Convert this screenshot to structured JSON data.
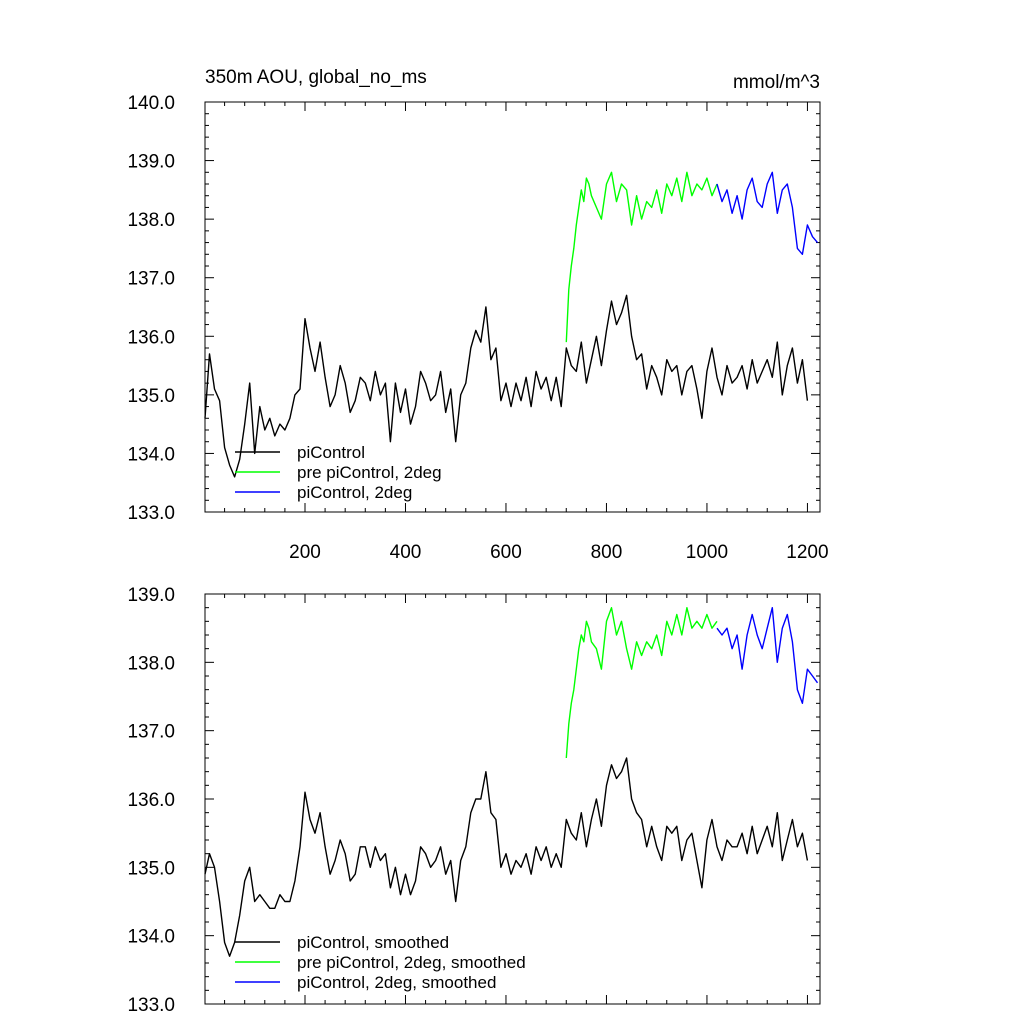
{
  "chart_data": [
    {
      "type": "line",
      "title": "350m AOU, global_no_ms",
      "units": "mmol/m^3",
      "xlim": [
        1,
        1225
      ],
      "ylim": [
        133.0,
        140.0
      ],
      "x_ticks": [
        200,
        400,
        600,
        800,
        1000,
        1200
      ],
      "x_tick_labels": [
        "200",
        "400",
        "600",
        "800",
        "1000",
        "1200"
      ],
      "y_ticks": [
        133.0,
        134.0,
        135.0,
        136.0,
        137.0,
        138.0,
        139.0,
        140.0
      ],
      "y_tick_labels": [
        "133.0",
        "134.0",
        "135.0",
        "136.0",
        "137.0",
        "138.0",
        "139.0",
        "140.0"
      ],
      "legend_position": "bottom-left",
      "series": [
        {
          "name": "piControl",
          "color": "#000000",
          "x": [
            1,
            10,
            20,
            30,
            40,
            50,
            60,
            70,
            80,
            90,
            100,
            110,
            120,
            130,
            140,
            150,
            160,
            170,
            180,
            190,
            200,
            210,
            220,
            230,
            240,
            250,
            260,
            270,
            280,
            290,
            300,
            310,
            320,
            330,
            340,
            350,
            360,
            370,
            380,
            390,
            400,
            410,
            420,
            430,
            440,
            450,
            460,
            470,
            480,
            490,
            500,
            510,
            520,
            530,
            540,
            550,
            560,
            570,
            580,
            590,
            600,
            610,
            620,
            630,
            640,
            650,
            660,
            670,
            680,
            690,
            700,
            710,
            720,
            730,
            740,
            750,
            760,
            770,
            780,
            790,
            800,
            810,
            820,
            830,
            840,
            850,
            860,
            870,
            880,
            890,
            900,
            910,
            920,
            930,
            940,
            950,
            960,
            970,
            980,
            990,
            1000,
            1010,
            1020,
            1030,
            1040,
            1050,
            1060,
            1070,
            1080,
            1090,
            1100,
            1110,
            1120,
            1130,
            1140,
            1150,
            1160,
            1170,
            1180,
            1190,
            1200
          ],
          "values": [
            134.6,
            135.7,
            135.1,
            134.9,
            134.1,
            133.8,
            133.6,
            133.9,
            134.5,
            135.2,
            134.0,
            134.8,
            134.4,
            134.6,
            134.3,
            134.5,
            134.4,
            134.6,
            135.0,
            135.1,
            136.3,
            135.8,
            135.4,
            135.9,
            135.3,
            134.8,
            135.0,
            135.5,
            135.2,
            134.7,
            134.9,
            135.3,
            135.2,
            134.9,
            135.4,
            135.0,
            135.2,
            134.2,
            135.2,
            134.7,
            135.1,
            134.5,
            134.8,
            135.4,
            135.2,
            134.9,
            135.0,
            135.4,
            134.7,
            135.1,
            134.2,
            135.0,
            135.2,
            135.8,
            136.1,
            135.9,
            136.5,
            135.6,
            135.8,
            134.9,
            135.2,
            134.8,
            135.2,
            134.9,
            135.3,
            134.8,
            135.4,
            135.1,
            135.3,
            134.9,
            135.3,
            134.8,
            135.8,
            135.5,
            135.4,
            135.9,
            135.2,
            135.6,
            136.0,
            135.5,
            136.1,
            136.6,
            136.2,
            136.4,
            136.7,
            136.0,
            135.6,
            135.7,
            135.1,
            135.5,
            135.3,
            135.0,
            135.6,
            135.4,
            135.5,
            135.0,
            135.4,
            135.5,
            135.1,
            134.6,
            135.4,
            135.8,
            135.3,
            135.0,
            135.5,
            135.2,
            135.3,
            135.5,
            135.1,
            135.6,
            135.2,
            135.4,
            135.6,
            135.3,
            135.9,
            135.0,
            135.5,
            135.8,
            135.2,
            135.6,
            134.9
          ]
        },
        {
          "name": "pre piControl, 2deg",
          "color": "#00ff00",
          "x": [
            720,
            725,
            730,
            735,
            740,
            745,
            750,
            755,
            760,
            765,
            770,
            780,
            790,
            800,
            810,
            820,
            830,
            840,
            850,
            860,
            870,
            880,
            890,
            900,
            910,
            920,
            930,
            940,
            950,
            960,
            970,
            980,
            990,
            1000,
            1010,
            1020
          ],
          "values": [
            135.9,
            136.8,
            137.2,
            137.5,
            137.9,
            138.2,
            138.5,
            138.3,
            138.7,
            138.6,
            138.4,
            138.2,
            138.0,
            138.6,
            138.8,
            138.3,
            138.6,
            138.5,
            137.9,
            138.4,
            138.0,
            138.3,
            138.2,
            138.5,
            138.1,
            138.6,
            138.4,
            138.7,
            138.3,
            138.8,
            138.4,
            138.6,
            138.5,
            138.7,
            138.4,
            138.6
          ]
        },
        {
          "name": "piControl, 2deg",
          "color": "#0000ff",
          "x": [
            1020,
            1030,
            1040,
            1050,
            1060,
            1070,
            1080,
            1090,
            1100,
            1110,
            1120,
            1130,
            1140,
            1150,
            1160,
            1170,
            1180,
            1190,
            1200,
            1210,
            1220
          ],
          "values": [
            138.6,
            138.3,
            138.5,
            138.1,
            138.4,
            138.0,
            138.5,
            138.7,
            138.3,
            138.2,
            138.6,
            138.8,
            138.1,
            138.5,
            138.6,
            138.2,
            137.5,
            137.4,
            137.9,
            137.7,
            137.6
          ]
        }
      ]
    },
    {
      "type": "line",
      "xlim": [
        1,
        1225
      ],
      "ylim": [
        133.0,
        139.0
      ],
      "y_ticks": [
        133.0,
        134.0,
        135.0,
        136.0,
        137.0,
        138.0,
        139.0
      ],
      "y_tick_labels": [
        "133.0",
        "134.0",
        "135.0",
        "136.0",
        "137.0",
        "138.0",
        "139.0"
      ],
      "legend_position": "bottom-left",
      "series": [
        {
          "name": "piControl, smoothed",
          "color": "#000000",
          "x": [
            1,
            10,
            20,
            30,
            40,
            50,
            60,
            70,
            80,
            90,
            100,
            110,
            120,
            130,
            140,
            150,
            160,
            170,
            180,
            190,
            200,
            210,
            220,
            230,
            240,
            250,
            260,
            270,
            280,
            290,
            300,
            310,
            320,
            330,
            340,
            350,
            360,
            370,
            380,
            390,
            400,
            410,
            420,
            430,
            440,
            450,
            460,
            470,
            480,
            490,
            500,
            510,
            520,
            530,
            540,
            550,
            560,
            570,
            580,
            590,
            600,
            610,
            620,
            630,
            640,
            650,
            660,
            670,
            680,
            690,
            700,
            710,
            720,
            730,
            740,
            750,
            760,
            770,
            780,
            790,
            800,
            810,
            820,
            830,
            840,
            850,
            860,
            870,
            880,
            890,
            900,
            910,
            920,
            930,
            940,
            950,
            960,
            970,
            980,
            990,
            1000,
            1010,
            1020,
            1030,
            1040,
            1050,
            1060,
            1070,
            1080,
            1090,
            1100,
            1110,
            1120,
            1130,
            1140,
            1150,
            1160,
            1170,
            1180,
            1190,
            1200
          ],
          "values": [
            134.9,
            135.2,
            135.0,
            134.5,
            133.9,
            133.7,
            133.9,
            134.3,
            134.8,
            135.0,
            134.5,
            134.6,
            134.5,
            134.4,
            134.4,
            134.6,
            134.5,
            134.5,
            134.8,
            135.3,
            136.1,
            135.7,
            135.5,
            135.8,
            135.3,
            134.9,
            135.1,
            135.4,
            135.2,
            134.8,
            134.9,
            135.3,
            135.3,
            135.0,
            135.3,
            135.1,
            135.2,
            134.7,
            135.0,
            134.6,
            134.9,
            134.6,
            134.8,
            135.3,
            135.2,
            135.0,
            135.1,
            135.3,
            134.9,
            135.1,
            134.5,
            135.1,
            135.3,
            135.8,
            136.0,
            136.0,
            136.4,
            135.8,
            135.7,
            135.0,
            135.2,
            134.9,
            135.1,
            135.0,
            135.2,
            134.9,
            135.3,
            135.1,
            135.3,
            135.0,
            135.2,
            135.0,
            135.7,
            135.5,
            135.4,
            135.8,
            135.3,
            135.7,
            136.0,
            135.6,
            136.2,
            136.5,
            136.3,
            136.4,
            136.6,
            136.0,
            135.8,
            135.7,
            135.3,
            135.6,
            135.3,
            135.1,
            135.6,
            135.5,
            135.6,
            135.1,
            135.4,
            135.5,
            135.1,
            134.7,
            135.4,
            135.7,
            135.3,
            135.1,
            135.4,
            135.3,
            135.3,
            135.5,
            135.2,
            135.6,
            135.2,
            135.4,
            135.6,
            135.3,
            135.8,
            135.1,
            135.4,
            135.7,
            135.3,
            135.5,
            135.1
          ]
        },
        {
          "name": "pre piControl, 2deg, smoothed",
          "color": "#00ff00",
          "x": [
            720,
            725,
            730,
            735,
            740,
            745,
            750,
            755,
            760,
            765,
            770,
            780,
            790,
            800,
            810,
            820,
            830,
            840,
            850,
            860,
            870,
            880,
            890,
            900,
            910,
            920,
            930,
            940,
            950,
            960,
            970,
            980,
            990,
            1000,
            1010,
            1020
          ],
          "values": [
            136.6,
            137.1,
            137.4,
            137.6,
            137.9,
            138.2,
            138.4,
            138.3,
            138.6,
            138.5,
            138.3,
            138.2,
            137.9,
            138.6,
            138.8,
            138.4,
            138.6,
            138.2,
            137.9,
            138.3,
            138.1,
            138.3,
            138.2,
            138.4,
            138.1,
            138.6,
            138.4,
            138.7,
            138.4,
            138.8,
            138.5,
            138.6,
            138.5,
            138.7,
            138.5,
            138.6
          ]
        },
        {
          "name": "piControl, 2deg, smoothed",
          "color": "#0000ff",
          "x": [
            1020,
            1030,
            1040,
            1050,
            1060,
            1070,
            1080,
            1090,
            1100,
            1110,
            1120,
            1130,
            1140,
            1150,
            1160,
            1170,
            1180,
            1190,
            1200,
            1210,
            1220
          ],
          "values": [
            138.5,
            138.4,
            138.5,
            138.2,
            138.4,
            137.9,
            138.4,
            138.7,
            138.4,
            138.2,
            138.5,
            138.8,
            138.0,
            138.5,
            138.7,
            138.3,
            137.6,
            137.4,
            137.9,
            137.8,
            137.7
          ]
        }
      ]
    }
  ]
}
